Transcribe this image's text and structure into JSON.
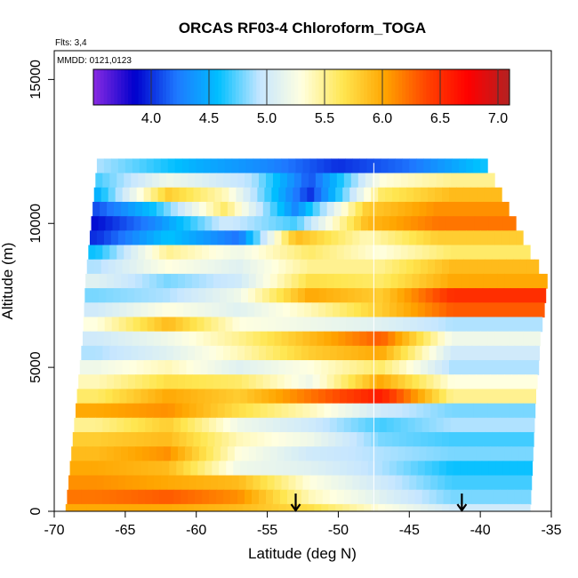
{
  "chart_data": {
    "type": "heatmap",
    "title": "ORCAS RF03-4 Chloroform_TOGA",
    "subtitle_flights": "Flts: 3,4",
    "subtitle_dates": "MMDD: 0121,0123",
    "xlabel": "Latitude (deg N)",
    "ylabel": "Altitude (m)",
    "xlim": [
      -70,
      -35
    ],
    "ylim": [
      0,
      16000
    ],
    "x_ticks": [
      -70,
      -65,
      -60,
      -55,
      -50,
      -45,
      -40,
      -35
    ],
    "x_tick_labels": [
      "-70",
      "-65",
      "-60",
      "-55",
      "-50",
      "-45",
      "-40",
      "-35"
    ],
    "y_ticks": [
      0,
      5000,
      10000,
      15000
    ],
    "y_tick_labels": [
      "0",
      "5000",
      "10000",
      "15000"
    ],
    "colorbar": {
      "range": [
        3.5,
        7.1
      ],
      "ticks": [
        4.0,
        4.5,
        5.0,
        5.5,
        6.0,
        6.5,
        7.0
      ],
      "tick_labels": [
        "4.0",
        "4.5",
        "5.0",
        "5.5",
        "6.0",
        "6.5",
        "7.0"
      ],
      "colors": [
        "#8a2be2",
        "#0000cd",
        "#1e78ff",
        "#00bfff",
        "#c6e6ff",
        "#ffffe0",
        "#ffe650",
        "#ffa500",
        "#ff4500",
        "#ff0000",
        "#b22222"
      ]
    },
    "divider_latitude": -47.5,
    "markers": [
      {
        "label": "arrow",
        "x": -53.0,
        "y": 0
      },
      {
        "label": "arrow",
        "x": -41.3,
        "y": 0
      }
    ],
    "field_description": "Interpolated chloroform mixing ratio along flight curtain; values range approximately 3.8 to 6.9",
    "footprint": {
      "left_edge": [
        [
          -69.2,
          0
        ],
        [
          -69.0,
          1000
        ],
        [
          -68.8,
          2000
        ],
        [
          -68.6,
          3000
        ],
        [
          -68.4,
          4000
        ],
        [
          -68.2,
          5000
        ],
        [
          -68.0,
          6000
        ],
        [
          -67.9,
          7000
        ],
        [
          -67.8,
          8000
        ],
        [
          -67.6,
          9000
        ],
        [
          -67.4,
          10000
        ],
        [
          -67.2,
          11000
        ],
        [
          -67.0,
          12000
        ]
      ],
      "right_edge": [
        [
          -36.5,
          0
        ],
        [
          -36.4,
          1000
        ],
        [
          -36.3,
          2000
        ],
        [
          -36.2,
          3000
        ],
        [
          -36.1,
          4000
        ],
        [
          -35.9,
          5000
        ],
        [
          -35.8,
          6000
        ],
        [
          -35.5,
          7000
        ],
        [
          -35.3,
          8000
        ],
        [
          -36.5,
          9000
        ],
        [
          -37.5,
          10000
        ],
        [
          -38.5,
          11000
        ],
        [
          -39.5,
          12000
        ]
      ]
    },
    "bands": [
      {
        "alt": 12000,
        "segments": [
          [
            -67.0,
            4.9
          ],
          [
            -60.0,
            4.5
          ],
          [
            -55.0,
            4.3
          ],
          [
            -50.0,
            4.0
          ],
          [
            -45.0,
            4.2
          ],
          [
            -40.0,
            4.6
          ]
        ]
      },
      {
        "alt": 11500,
        "segments": [
          [
            -67.0,
            4.7
          ],
          [
            -62.0,
            5.2
          ],
          [
            -56.0,
            4.9
          ],
          [
            -52.0,
            4.1
          ],
          [
            -47.0,
            5.3
          ],
          [
            -42.0,
            5.5
          ]
        ]
      },
      {
        "alt": 11000,
        "segments": [
          [
            -67.0,
            4.5
          ],
          [
            -62.0,
            5.8
          ],
          [
            -58.0,
            5.4
          ],
          [
            -52.0,
            4.0
          ],
          [
            -47.0,
            5.6
          ],
          [
            -42.0,
            5.9
          ]
        ]
      },
      {
        "alt": 10500,
        "segments": [
          [
            -67.0,
            4.1
          ],
          [
            -63.0,
            4.6
          ],
          [
            -58.0,
            5.6
          ],
          [
            -53.0,
            4.3
          ],
          [
            -48.0,
            5.8
          ],
          [
            -43.0,
            6.1
          ]
        ]
      },
      {
        "alt": 10000,
        "segments": [
          [
            -67.0,
            3.9
          ],
          [
            -63.0,
            4.3
          ],
          [
            -58.0,
            5.0
          ],
          [
            -53.0,
            4.7
          ],
          [
            -48.0,
            5.9
          ],
          [
            -43.0,
            6.2
          ]
        ]
      },
      {
        "alt": 9500,
        "segments": [
          [
            -67.0,
            4.0
          ],
          [
            -62.0,
            4.6
          ],
          [
            -57.0,
            4.2
          ],
          [
            -53.0,
            5.9
          ],
          [
            -48.0,
            5.4
          ],
          [
            -43.0,
            5.8
          ]
        ]
      },
      {
        "alt": 9000,
        "segments": [
          [
            -67.0,
            4.6
          ],
          [
            -62.0,
            5.5
          ],
          [
            -57.0,
            5.2
          ],
          [
            -52.0,
            5.6
          ],
          [
            -47.0,
            5.3
          ],
          [
            -42.0,
            5.6
          ]
        ]
      },
      {
        "alt": 8500,
        "segments": [
          [
            -67.0,
            4.9
          ],
          [
            -62.0,
            5.3
          ],
          [
            -57.0,
            5.1
          ],
          [
            -52.0,
            5.5
          ],
          [
            -47.0,
            5.5
          ],
          [
            -42.0,
            5.9
          ]
        ]
      },
      {
        "alt": 8000,
        "segments": [
          [
            -67.0,
            5.1
          ],
          [
            -62.0,
            4.8
          ],
          [
            -57.0,
            5.0
          ],
          [
            -52.0,
            5.7
          ],
          [
            -47.0,
            5.6
          ],
          [
            -42.0,
            6.0
          ]
        ]
      },
      {
        "alt": 7500,
        "segments": [
          [
            -67.0,
            4.8
          ],
          [
            -62.0,
            4.9
          ],
          [
            -57.0,
            5.2
          ],
          [
            -52.0,
            6.0
          ],
          [
            -47.0,
            5.8
          ],
          [
            -42.0,
            6.5
          ]
        ]
      },
      {
        "alt": 7000,
        "segments": [
          [
            -67.0,
            5.0
          ],
          [
            -62.0,
            5.3
          ],
          [
            -57.0,
            5.1
          ],
          [
            -52.0,
            5.4
          ],
          [
            -47.0,
            5.8
          ],
          [
            -42.0,
            6.3
          ]
        ]
      },
      {
        "alt": 6500,
        "segments": [
          [
            -67.0,
            5.3
          ],
          [
            -62.0,
            5.9
          ],
          [
            -57.0,
            5.3
          ],
          [
            -52.0,
            5.2
          ],
          [
            -47.0,
            5.1
          ],
          [
            -42.0,
            4.9
          ]
        ]
      },
      {
        "alt": 6000,
        "segments": [
          [
            -67.0,
            5.0
          ],
          [
            -62.0,
            5.2
          ],
          [
            -57.0,
            5.5
          ],
          [
            -52.0,
            5.9
          ],
          [
            -47.0,
            6.3
          ],
          [
            -42.0,
            5.2
          ]
        ]
      },
      {
        "alt": 5500,
        "segments": [
          [
            -67.0,
            4.9
          ],
          [
            -62.0,
            5.1
          ],
          [
            -57.0,
            5.4
          ],
          [
            -52.0,
            5.8
          ],
          [
            -47.0,
            6.0
          ],
          [
            -42.0,
            5.0
          ]
        ]
      },
      {
        "alt": 5000,
        "segments": [
          [
            -67.0,
            5.2
          ],
          [
            -62.0,
            5.4
          ],
          [
            -57.0,
            5.1
          ],
          [
            -52.0,
            5.3
          ],
          [
            -47.0,
            5.6
          ],
          [
            -42.0,
            4.9
          ]
        ]
      },
      {
        "alt": 4500,
        "segments": [
          [
            -67.0,
            5.4
          ],
          [
            -62.0,
            5.7
          ],
          [
            -57.0,
            5.6
          ],
          [
            -52.0,
            5.2
          ],
          [
            -47.0,
            6.0
          ],
          [
            -42.0,
            5.3
          ]
        ]
      },
      {
        "alt": 4000,
        "segments": [
          [
            -67.0,
            5.6
          ],
          [
            -62.0,
            6.0
          ],
          [
            -57.0,
            5.8
          ],
          [
            -52.0,
            6.2
          ],
          [
            -47.0,
            6.6
          ],
          [
            -42.0,
            5.5
          ]
        ]
      },
      {
        "alt": 3500,
        "segments": [
          [
            -67.0,
            6.0
          ],
          [
            -62.0,
            6.1
          ],
          [
            -57.0,
            5.7
          ],
          [
            -52.0,
            5.4
          ],
          [
            -47.0,
            5.0
          ],
          [
            -42.0,
            4.8
          ]
        ]
      },
      {
        "alt": 3000,
        "segments": [
          [
            -67.0,
            5.5
          ],
          [
            -62.0,
            5.8
          ],
          [
            -57.0,
            5.2
          ],
          [
            -52.0,
            5.0
          ],
          [
            -47.0,
            4.7
          ],
          [
            -42.0,
            4.9
          ]
        ]
      },
      {
        "alt": 2500,
        "segments": [
          [
            -67.0,
            5.8
          ],
          [
            -62.0,
            5.9
          ],
          [
            -57.0,
            5.4
          ],
          [
            -52.0,
            5.2
          ],
          [
            -47.0,
            4.8
          ],
          [
            -42.0,
            4.7
          ]
        ]
      },
      {
        "alt": 2000,
        "segments": [
          [
            -67.0,
            5.9
          ],
          [
            -62.0,
            6.1
          ],
          [
            -57.0,
            5.3
          ],
          [
            -52.0,
            5.0
          ],
          [
            -47.0,
            4.9
          ],
          [
            -42.0,
            4.8
          ]
        ]
      },
      {
        "alt": 1500,
        "segments": [
          [
            -67.0,
            6.0
          ],
          [
            -62.0,
            5.9
          ],
          [
            -57.0,
            5.2
          ],
          [
            -52.0,
            5.1
          ],
          [
            -47.0,
            4.9
          ],
          [
            -42.0,
            4.6
          ]
        ]
      },
      {
        "alt": 1000,
        "segments": [
          [
            -67.0,
            6.1
          ],
          [
            -62.0,
            6.0
          ],
          [
            -57.0,
            5.9
          ],
          [
            -52.0,
            5.3
          ],
          [
            -47.0,
            5.0
          ],
          [
            -42.0,
            4.7
          ]
        ]
      },
      {
        "alt": 500,
        "segments": [
          [
            -67.0,
            6.2
          ],
          [
            -62.0,
            6.3
          ],
          [
            -57.0,
            6.1
          ],
          [
            -52.0,
            5.4
          ],
          [
            -47.0,
            5.1
          ],
          [
            -42.0,
            4.8
          ]
        ]
      },
      {
        "alt": 0,
        "segments": [
          [
            -67.0,
            6.0
          ],
          [
            -62.0,
            6.0
          ],
          [
            -57.0,
            5.9
          ],
          [
            -52.0,
            5.7
          ],
          [
            -47.0,
            5.3
          ],
          [
            -42.0,
            5.0
          ]
        ]
      }
    ]
  }
}
